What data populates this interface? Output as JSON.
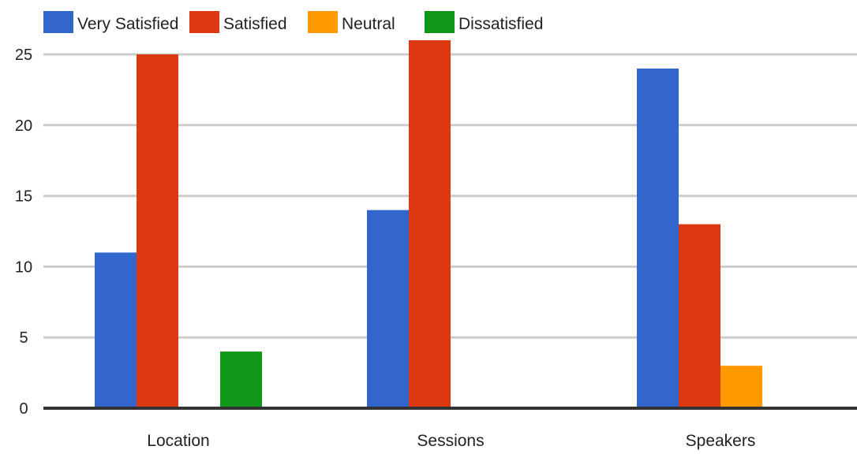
{
  "chart_data": {
    "type": "bar",
    "categories": [
      "Location",
      "Sessions",
      "Speakers"
    ],
    "series": [
      {
        "name": "Very Satisfied",
        "color": "#3366cc",
        "values": [
          11,
          14,
          24
        ]
      },
      {
        "name": "Satisfied",
        "color": "#dc3912",
        "values": [
          25,
          26,
          13
        ]
      },
      {
        "name": "Neutral",
        "color": "#ff9900",
        "values": [
          0,
          0,
          3
        ]
      },
      {
        "name": "Dissatisfied",
        "color": "#109618",
        "values": [
          4,
          0,
          0
        ]
      }
    ],
    "ylim": [
      0,
      26
    ],
    "yticks": [
      "0",
      "5",
      "10",
      "15",
      "20",
      "25"
    ],
    "grid": true,
    "legend_position": "top-left"
  }
}
